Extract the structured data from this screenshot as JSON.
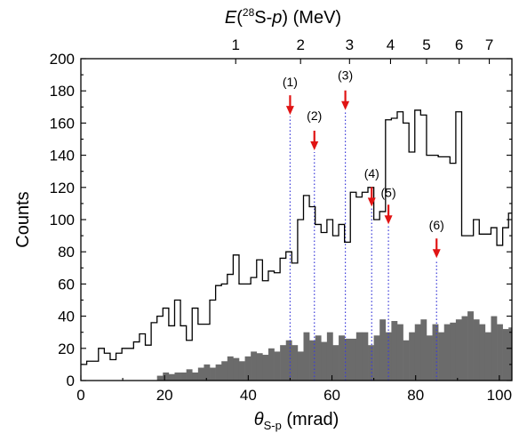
{
  "chart_data": {
    "type": "histogram",
    "xlabel_symbol": "θ",
    "xlabel_sub": "S-p",
    "xlabel_unit": " (mrad)",
    "ylabel": "Counts",
    "toplabel_pre": "E",
    "toplabel_sup": "28",
    "toplabel_mid": "S-",
    "toplabel_it": "p",
    "toplabel_post": ") (MeV)",
    "xlim": [
      0,
      103
    ],
    "ylim": [
      0,
      200
    ],
    "x_ticks": [
      0,
      20,
      40,
      60,
      80,
      100
    ],
    "y_ticks": [
      0,
      20,
      40,
      60,
      80,
      100,
      120,
      140,
      160,
      180,
      200
    ],
    "top_ticks": [
      {
        "label": "1",
        "x": 37.0
      },
      {
        "label": "2",
        "x": 52.5
      },
      {
        "label": "3",
        "x": 64.2
      },
      {
        "label": "4",
        "x": 74.0
      },
      {
        "label": "5",
        "x": 82.6
      },
      {
        "label": "6",
        "x": 90.4
      },
      {
        "label": "7",
        "x": 97.6
      }
    ],
    "bin_start": 0,
    "bin_width": 1.4,
    "series": [
      {
        "style": "step",
        "values": [
          10,
          12,
          12,
          20,
          17,
          13,
          17,
          20,
          20,
          24,
          29,
          22,
          36,
          40,
          45,
          34,
          50,
          34,
          25,
          45,
          35,
          35,
          50,
          59,
          60,
          66,
          78,
          60,
          60,
          64,
          75,
          62,
          68,
          67,
          76,
          80,
          73,
          100,
          115,
          108,
          97,
          92,
          100,
          90,
          97,
          86,
          117,
          114,
          117,
          120,
          100,
          105,
          162,
          163,
          167,
          160,
          142,
          168,
          165,
          140,
          140,
          139,
          139,
          135,
          167,
          90,
          90,
          100,
          91,
          91,
          95,
          84,
          95,
          104,
          100,
          107,
          90,
          94,
          66,
          70,
          84,
          85,
          68,
          55,
          50,
          50,
          40,
          43,
          73,
          60,
          61,
          54,
          48,
          31,
          37,
          40,
          20,
          18,
          20,
          21,
          20,
          16,
          22,
          22,
          22,
          15
        ]
      },
      {
        "style": "filled",
        "color": "#6b6b6b",
        "values": [
          0,
          0,
          0,
          0,
          0,
          0,
          0,
          0,
          0,
          0,
          0,
          0,
          0,
          3,
          5,
          4,
          5,
          5,
          7,
          5,
          8,
          10,
          8,
          10,
          12,
          15,
          14,
          12,
          15,
          18,
          17,
          16,
          20,
          18,
          22,
          25,
          22,
          18,
          30,
          25,
          28,
          24,
          30,
          22,
          28,
          26,
          26,
          30,
          30,
          22,
          28,
          38,
          30,
          37,
          35,
          25,
          30,
          35,
          38,
          28,
          35,
          30,
          35,
          36,
          38,
          40,
          43,
          38,
          35,
          30,
          40,
          35,
          32,
          33,
          38,
          28,
          30,
          25,
          18,
          22,
          25,
          20,
          22,
          18,
          15,
          16,
          12,
          18,
          15,
          12,
          16,
          10,
          20,
          18,
          15,
          10,
          5,
          10,
          7,
          12,
          10,
          5,
          3,
          6,
          2,
          1
        ]
      }
    ],
    "peaks": [
      {
        "label": "(1)",
        "x": 50.0,
        "arrow_tip": 164,
        "label_y": 183
      },
      {
        "label": "(2)",
        "x": 55.8,
        "arrow_tip": 142,
        "label_y": 162
      },
      {
        "label": "(3)",
        "x": 63.2,
        "arrow_tip": 167,
        "label_y": 187
      },
      {
        "label": "(4)",
        "x": 69.5,
        "arrow_tip": 107,
        "label_y": 126
      },
      {
        "label": "(5)",
        "x": 73.5,
        "arrow_tip": 96,
        "label_y": 114
      },
      {
        "label": "(6)",
        "x": 85.0,
        "arrow_tip": 75,
        "label_y": 94
      }
    ],
    "arrow_color": "#e01414",
    "guide_color": "#3b3bd9"
  }
}
